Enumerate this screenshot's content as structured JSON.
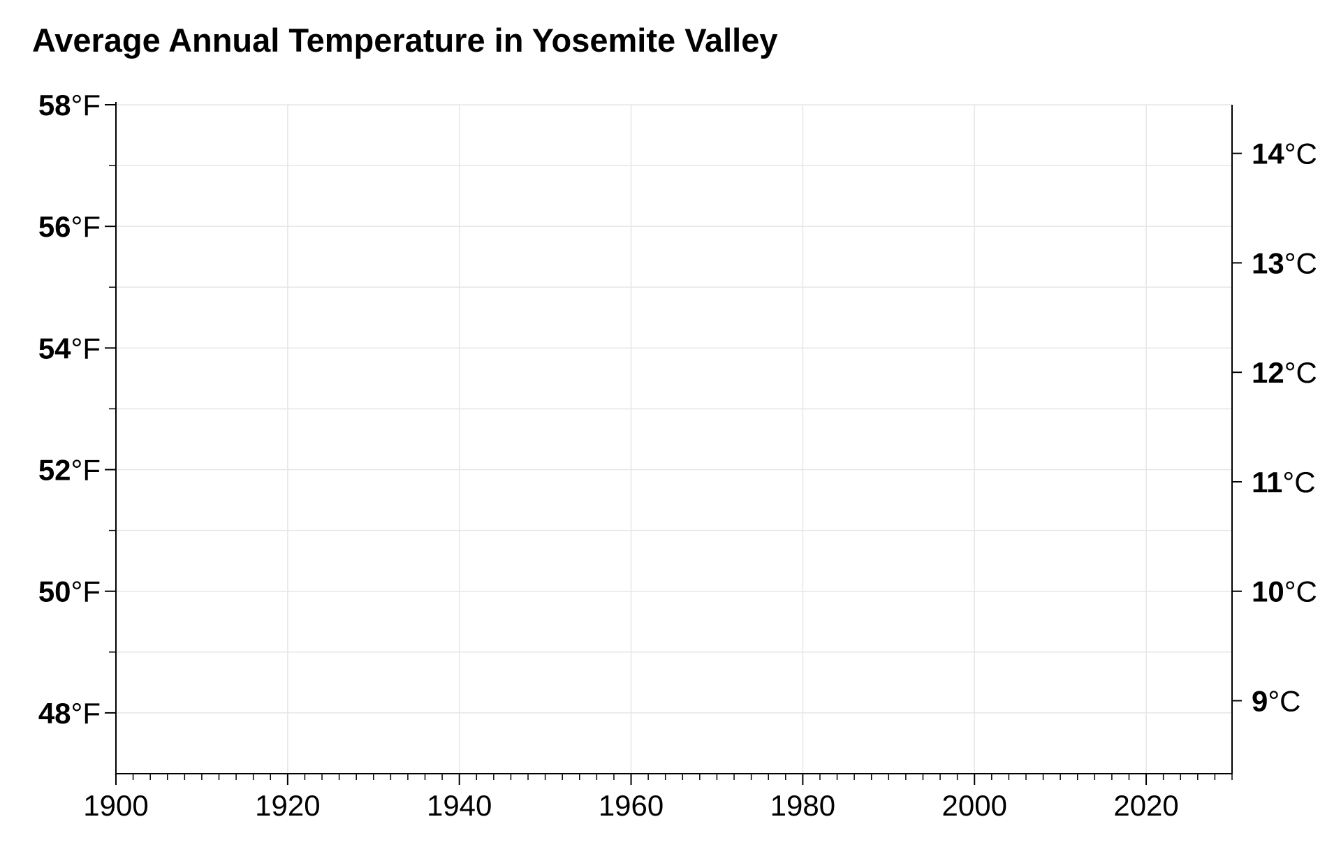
{
  "chart_data": {
    "type": "line",
    "title": "Average Annual Temperature in Yosemite Valley",
    "xlim": [
      1900,
      2030
    ],
    "ylim": [
      47,
      58
    ],
    "x_ticks": [
      1900,
      1920,
      1940,
      1960,
      1980,
      2000,
      2020
    ],
    "x_minor_step": 2,
    "y_ticks_left": [
      {
        "value": 48,
        "number": "48",
        "unit": "°F"
      },
      {
        "value": 50,
        "number": "50",
        "unit": "°F"
      },
      {
        "value": 52,
        "number": "52",
        "unit": "°F"
      },
      {
        "value": 54,
        "number": "54",
        "unit": "°F"
      },
      {
        "value": 56,
        "number": "56",
        "unit": "°F"
      },
      {
        "value": 58,
        "number": "58",
        "unit": "°F"
      }
    ],
    "y_minor_left": [
      49,
      51,
      53,
      55,
      57
    ],
    "y_ticks_right": [
      {
        "celsius": 9,
        "number": "9",
        "unit": "°C"
      },
      {
        "celsius": 10,
        "number": "10",
        "unit": "°C"
      },
      {
        "celsius": 11,
        "number": "11",
        "unit": "°C"
      },
      {
        "celsius": 12,
        "number": "12",
        "unit": "°C"
      },
      {
        "celsius": 13,
        "number": "13",
        "unit": "°C"
      },
      {
        "celsius": 14,
        "number": "14",
        "unit": "°C"
      }
    ],
    "series": [],
    "grid": true,
    "colors": {
      "grid": "#e6e6e6",
      "axis": "#000000"
    }
  }
}
